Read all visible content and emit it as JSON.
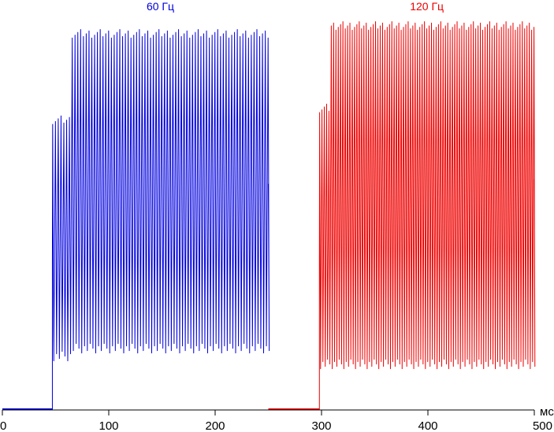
{
  "chart_data": {
    "type": "line",
    "title": "",
    "xlabel": "",
    "ylabel": "",
    "x_unit": "мс",
    "xlim": [
      0,
      500
    ],
    "ylim": [
      0,
      100
    ],
    "x_ticks": [
      0,
      100,
      200,
      300,
      400,
      500
    ],
    "x_tick_labels": [
      "0",
      "100",
      "200",
      "300",
      "400",
      "500"
    ],
    "grid": false,
    "legend": "none",
    "series": [
      {
        "name": "60 Гц",
        "color": "#0000dd",
        "baseline": {
          "x": [
            0,
            47
          ],
          "y": 0
        },
        "onset_ms": 47,
        "step_ms": 65,
        "end_ms": 250,
        "flicker_period_ms": 2.63,
        "initial_max": 74,
        "initial_min": 14,
        "final_max": 96,
        "final_min": 16
      },
      {
        "name": "120 Гц",
        "color": "#ee0000",
        "baseline": {
          "x": [
            250,
            298
          ],
          "y": 0
        },
        "onset_ms": 298,
        "step_ms": 307,
        "end_ms": 500,
        "flicker_period_ms": 2.19,
        "initial_max": 77,
        "initial_min": 12,
        "final_max": 98,
        "final_min": 12
      }
    ]
  }
}
